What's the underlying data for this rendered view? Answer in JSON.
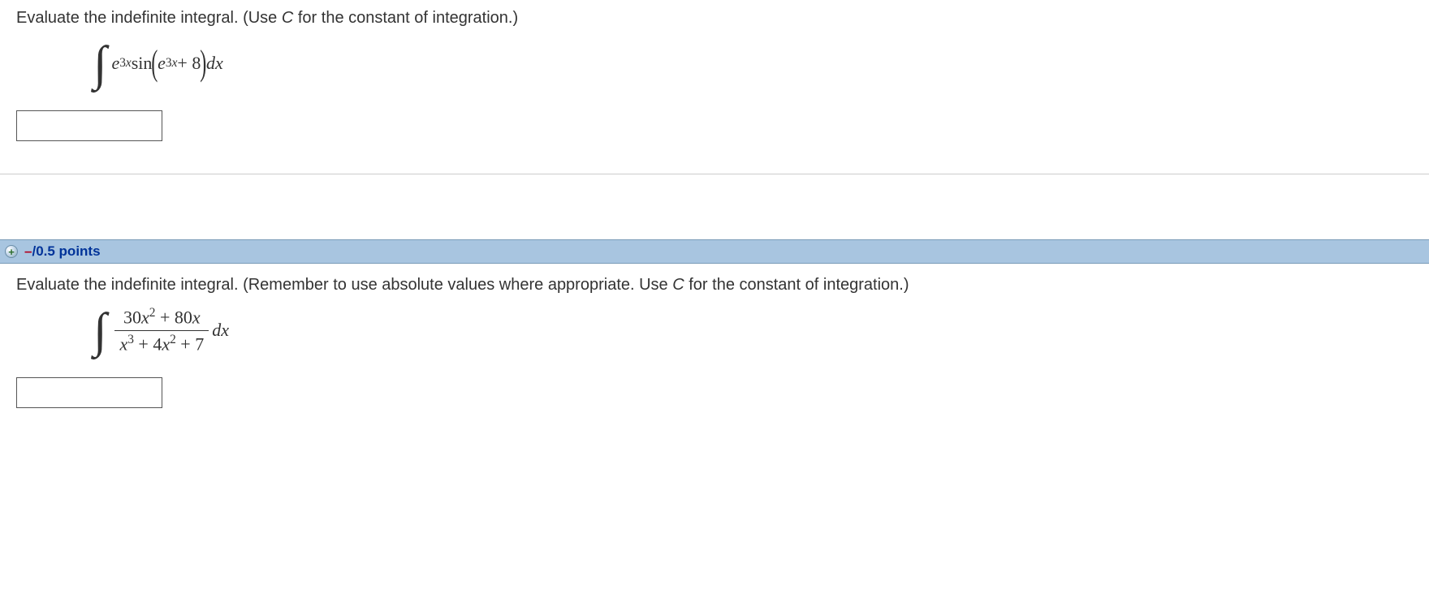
{
  "q1": {
    "prompt_before_c": "Evaluate the indefinite integral. (Use ",
    "c": "C",
    "prompt_after_c": " for the constant of integration.)",
    "integrand": {
      "e_term1": "e",
      "exp1": "3",
      "expx1": "x",
      "sin": "sin",
      "e_term2": "e",
      "exp2": "3",
      "expx2": "x",
      "plus": " + 8",
      "dx": " dx"
    }
  },
  "points_bar": {
    "expand_symbol": "+",
    "dash": "–",
    "text": "/0.5 points"
  },
  "q2": {
    "prompt_before_c": "Evaluate the indefinite integral. (Remember to use absolute values where appropriate. Use ",
    "c": "C",
    "prompt_after_c": " for the constant of integration.)",
    "integrand": {
      "num_a": "30",
      "num_x2": "x",
      "num_e2": "2",
      "num_plus": " + 80",
      "num_x": "x",
      "den_x3": "x",
      "den_e3": "3",
      "den_plus1": " + 4",
      "den_x2": "x",
      "den_e2": "2",
      "den_plus2": " + 7",
      "dx": " dx"
    }
  },
  "colors": {
    "bar_bg": "#a8c5e0",
    "points_text": "#003399",
    "dash": "#b00020"
  }
}
